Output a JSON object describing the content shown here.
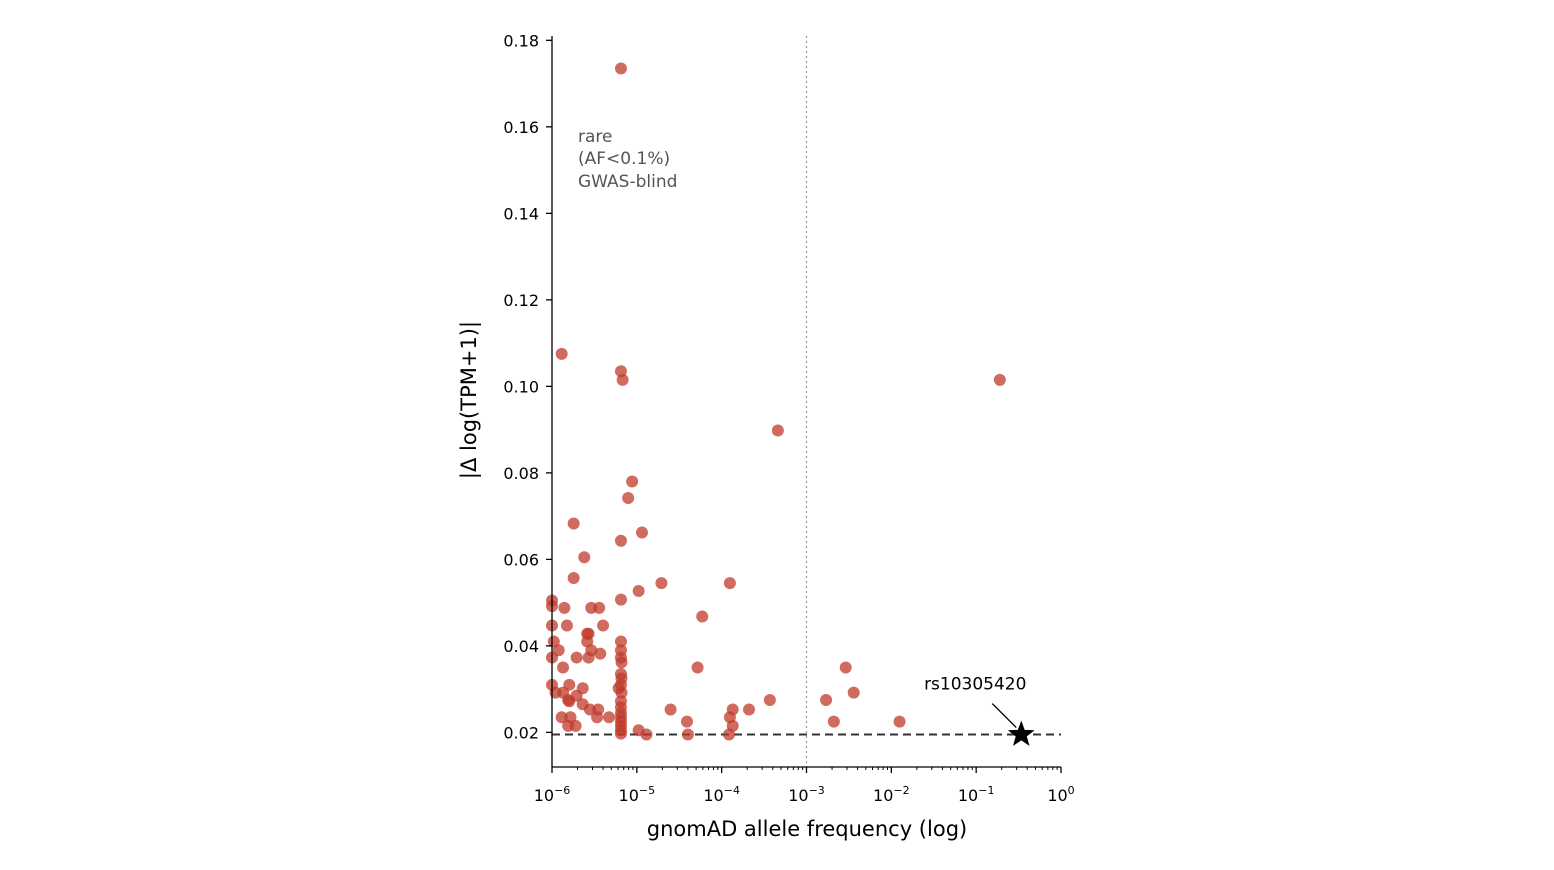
{
  "chart_data": {
    "type": "scatter",
    "title": "",
    "xlabel": "gnomAD allele frequency (log)",
    "ylabel": "|Δ log(TPM+1)|",
    "xscale": "log",
    "xlim": [
      1e-06,
      1
    ],
    "ylim": [
      0.012,
      0.181
    ],
    "grid": false,
    "x_ticks": [
      {
        "value": 1e-06,
        "base": "10",
        "exp": "−6"
      },
      {
        "value": 1e-05,
        "base": "10",
        "exp": "−5"
      },
      {
        "value": 0.0001,
        "base": "10",
        "exp": "−4"
      },
      {
        "value": 0.001,
        "base": "10",
        "exp": "−3"
      },
      {
        "value": 0.01,
        "base": "10",
        "exp": "−2"
      },
      {
        "value": 0.1,
        "base": "10",
        "exp": "−1"
      },
      {
        "value": 1,
        "base": "10",
        "exp": "0"
      }
    ],
    "y_ticks": [
      {
        "value": 0.02,
        "label": "0.02"
      },
      {
        "value": 0.04,
        "label": "0.04"
      },
      {
        "value": 0.06,
        "label": "0.06"
      },
      {
        "value": 0.08,
        "label": "0.08"
      },
      {
        "value": 0.1,
        "label": "0.10"
      },
      {
        "value": 0.12,
        "label": "0.12"
      },
      {
        "value": 0.14,
        "label": "0.14"
      },
      {
        "value": 0.16,
        "label": "0.16"
      },
      {
        "value": 0.18,
        "label": "0.18"
      }
    ],
    "threshold_x": 0.001,
    "reference_y": 0.0195,
    "rare_annotation": [
      "rare",
      "(AF<0.1%)",
      "GWAS-blind"
    ],
    "highlight": {
      "label": "rs10305420",
      "x": 0.34,
      "y": 0.0195
    },
    "colors": {
      "points": "#c0392b",
      "highlight": "#000000",
      "threshold": "#999999",
      "reference": "#333333"
    },
    "points": [
      {
        "x": 6.5e-06,
        "y": 0.1735
      },
      {
        "x": 1.3e-06,
        "y": 0.1075
      },
      {
        "x": 6.5e-06,
        "y": 0.1035
      },
      {
        "x": 6.8e-06,
        "y": 0.1015
      },
      {
        "x": 0.19,
        "y": 0.1015
      },
      {
        "x": 0.00046,
        "y": 0.0898
      },
      {
        "x": 8.8e-06,
        "y": 0.078
      },
      {
        "x": 7.9e-06,
        "y": 0.0742
      },
      {
        "x": 1.8e-06,
        "y": 0.0683
      },
      {
        "x": 1.15e-05,
        "y": 0.0662
      },
      {
        "x": 6.5e-06,
        "y": 0.0643
      },
      {
        "x": 2.4e-06,
        "y": 0.0605
      },
      {
        "x": 1.8e-06,
        "y": 0.0557
      },
      {
        "x": 1.95e-05,
        "y": 0.0545
      },
      {
        "x": 0.000125,
        "y": 0.0545
      },
      {
        "x": 1.05e-05,
        "y": 0.0527
      },
      {
        "x": 1e-06,
        "y": 0.0505
      },
      {
        "x": 6.5e-06,
        "y": 0.0507
      },
      {
        "x": 1e-06,
        "y": 0.0492
      },
      {
        "x": 1.4e-06,
        "y": 0.0488
      },
      {
        "x": 2.9e-06,
        "y": 0.0488
      },
      {
        "x": 3.6e-06,
        "y": 0.0488
      },
      {
        "x": 5.9e-05,
        "y": 0.0468
      },
      {
        "x": 1e-06,
        "y": 0.0447
      },
      {
        "x": 1.5e-06,
        "y": 0.0447
      },
      {
        "x": 4e-06,
        "y": 0.0447
      },
      {
        "x": 2.6e-06,
        "y": 0.0428
      },
      {
        "x": 2.7e-06,
        "y": 0.0428
      },
      {
        "x": 1.05e-06,
        "y": 0.041
      },
      {
        "x": 2.6e-06,
        "y": 0.041
      },
      {
        "x": 6.5e-06,
        "y": 0.041
      },
      {
        "x": 1.2e-06,
        "y": 0.039
      },
      {
        "x": 2.9e-06,
        "y": 0.039
      },
      {
        "x": 6.5e-06,
        "y": 0.039
      },
      {
        "x": 3.7e-06,
        "y": 0.0382
      },
      {
        "x": 1e-06,
        "y": 0.0373
      },
      {
        "x": 1.95e-06,
        "y": 0.0373
      },
      {
        "x": 2.7e-06,
        "y": 0.0373
      },
      {
        "x": 6.5e-06,
        "y": 0.0373
      },
      {
        "x": 6.6e-06,
        "y": 0.0362
      },
      {
        "x": 1.35e-06,
        "y": 0.035
      },
      {
        "x": 5.2e-05,
        "y": 0.035
      },
      {
        "x": 0.0029,
        "y": 0.035
      },
      {
        "x": 6.5e-06,
        "y": 0.0335
      },
      {
        "x": 6.6e-06,
        "y": 0.0325
      },
      {
        "x": 1.6e-06,
        "y": 0.031
      },
      {
        "x": 1e-06,
        "y": 0.031
      },
      {
        "x": 6.5e-06,
        "y": 0.031
      },
      {
        "x": 2.3e-06,
        "y": 0.0302
      },
      {
        "x": 6.1e-06,
        "y": 0.0302
      },
      {
        "x": 1.1e-06,
        "y": 0.0292
      },
      {
        "x": 1.35e-06,
        "y": 0.0292
      },
      {
        "x": 6.6e-06,
        "y": 0.0292
      },
      {
        "x": 0.0036,
        "y": 0.0292
      },
      {
        "x": 1.95e-06,
        "y": 0.0285
      },
      {
        "x": 1.55e-06,
        "y": 0.0275
      },
      {
        "x": 1.6e-06,
        "y": 0.0272
      },
      {
        "x": 6.5e-06,
        "y": 0.0272
      },
      {
        "x": 0.00037,
        "y": 0.0275
      },
      {
        "x": 0.0017,
        "y": 0.0275
      },
      {
        "x": 2.3e-06,
        "y": 0.0265
      },
      {
        "x": 6.5e-06,
        "y": 0.0258
      },
      {
        "x": 2.8e-06,
        "y": 0.0253
      },
      {
        "x": 3.5e-06,
        "y": 0.0253
      },
      {
        "x": 2.5e-05,
        "y": 0.0253
      },
      {
        "x": 0.000135,
        "y": 0.0253
      },
      {
        "x": 0.00021,
        "y": 0.0253
      },
      {
        "x": 6.5e-06,
        "y": 0.0245
      },
      {
        "x": 1.3e-06,
        "y": 0.0235
      },
      {
        "x": 1.65e-06,
        "y": 0.0235
      },
      {
        "x": 3.4e-06,
        "y": 0.0235
      },
      {
        "x": 4.7e-06,
        "y": 0.0235
      },
      {
        "x": 6.5e-06,
        "y": 0.0235
      },
      {
        "x": 0.000125,
        "y": 0.0235
      },
      {
        "x": 3.9e-05,
        "y": 0.0225
      },
      {
        "x": 0.0021,
        "y": 0.0225
      },
      {
        "x": 0.0125,
        "y": 0.0225
      },
      {
        "x": 6.5e-06,
        "y": 0.0225
      },
      {
        "x": 1.55e-06,
        "y": 0.0215
      },
      {
        "x": 1.9e-06,
        "y": 0.0215
      },
      {
        "x": 6.5e-06,
        "y": 0.0215
      },
      {
        "x": 0.000135,
        "y": 0.0215
      },
      {
        "x": 6.5e-06,
        "y": 0.0205
      },
      {
        "x": 1.05e-05,
        "y": 0.0205
      },
      {
        "x": 6.5e-06,
        "y": 0.0197
      },
      {
        "x": 1.3e-05,
        "y": 0.0195
      },
      {
        "x": 4e-05,
        "y": 0.0195
      },
      {
        "x": 0.000122,
        "y": 0.0195
      }
    ]
  }
}
